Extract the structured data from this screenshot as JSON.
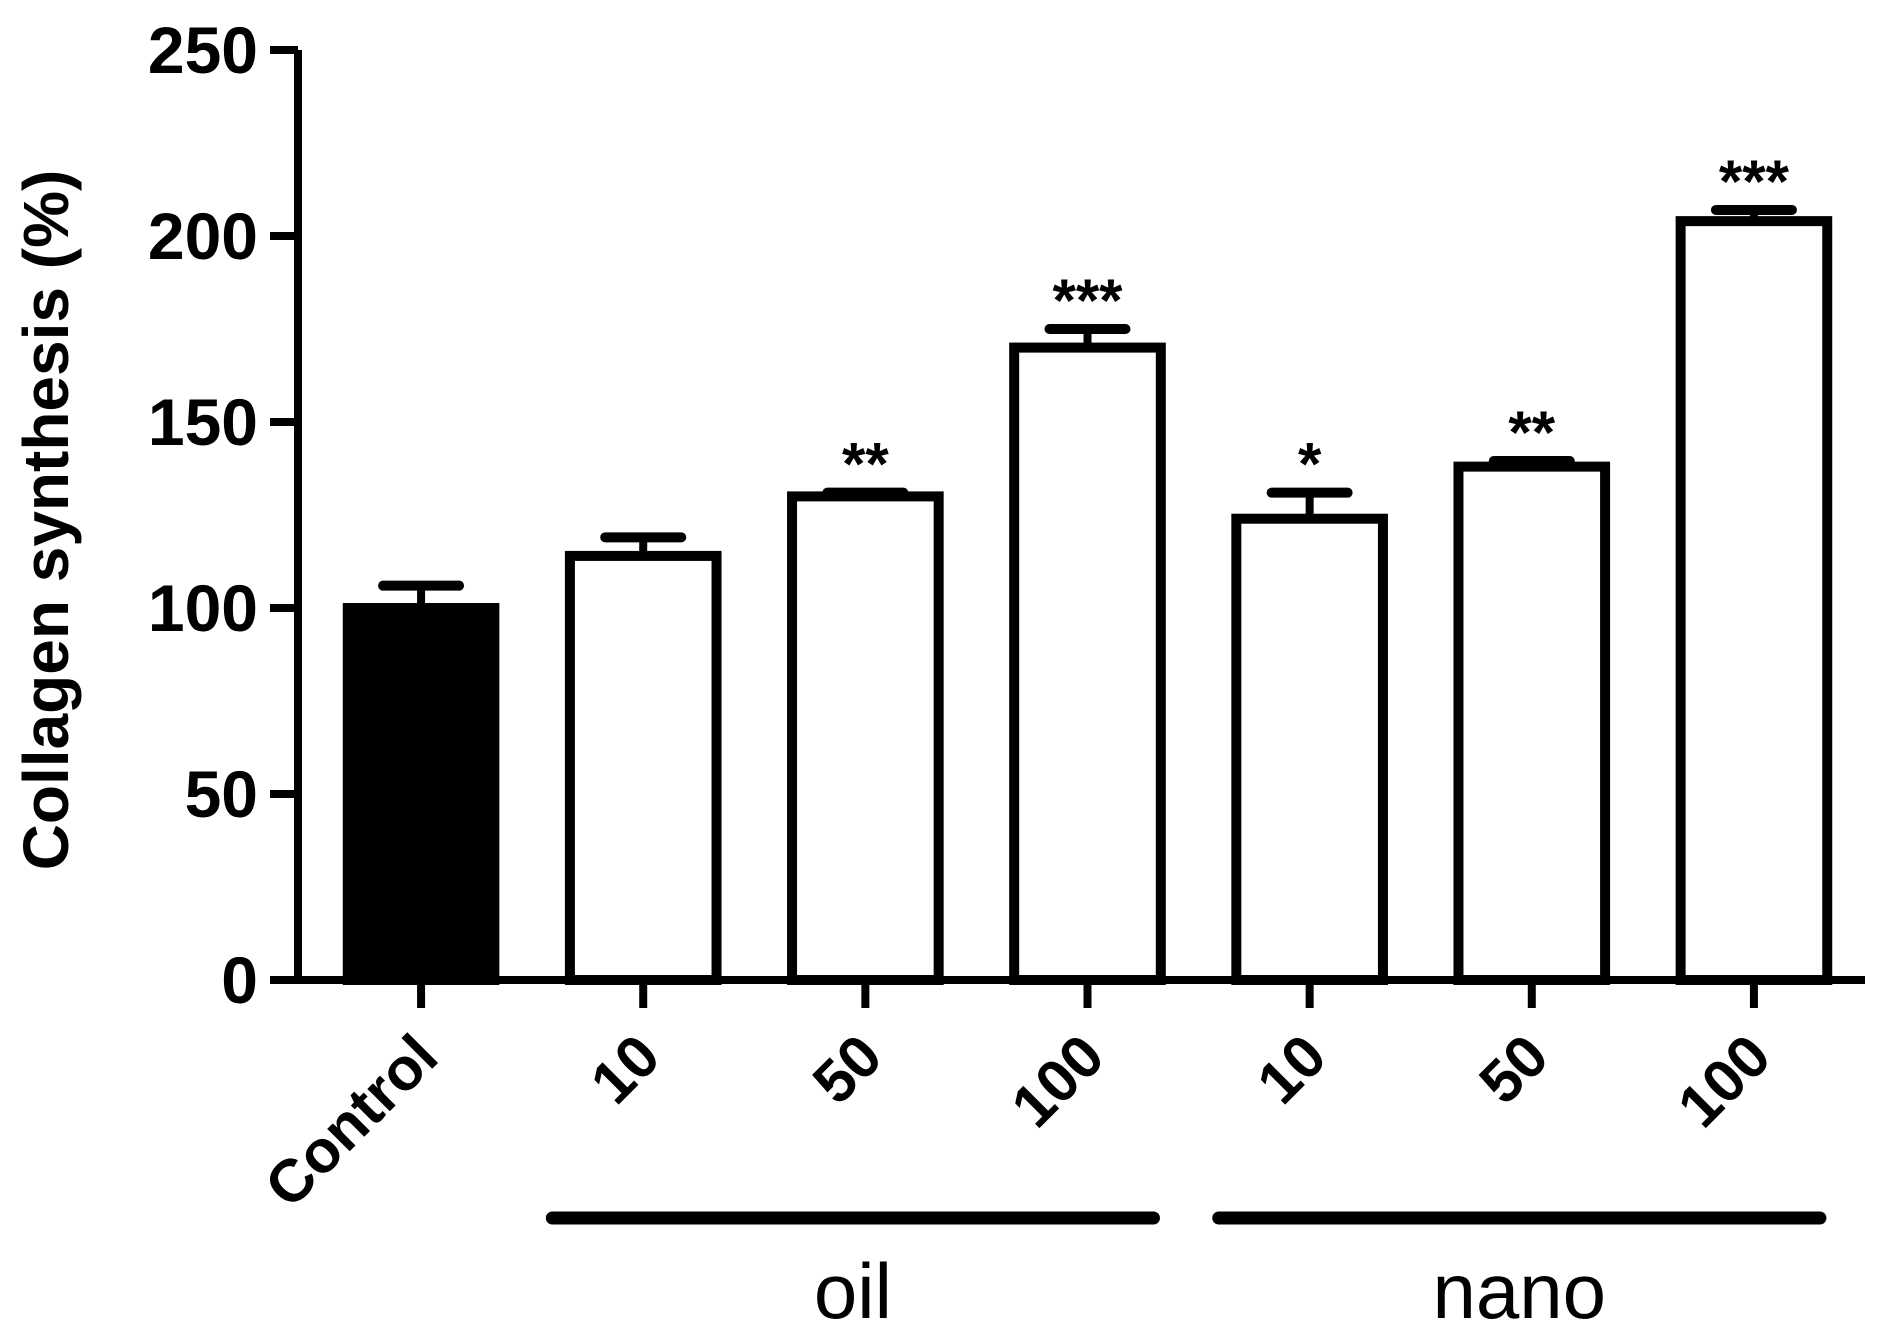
{
  "chart_data": {
    "type": "bar",
    "ylabel": "Collagen synthesis (%)",
    "ylim": [
      0,
      250
    ],
    "yticks": [
      0,
      50,
      100,
      150,
      200,
      250
    ],
    "categories": [
      "Control",
      "10",
      "50",
      "100",
      "10",
      "50",
      "100"
    ],
    "values": [
      100,
      114,
      130,
      170,
      124,
      138,
      204
    ],
    "errors": [
      6,
      5,
      1,
      5,
      7,
      1.5,
      3
    ],
    "significance": [
      "",
      "",
      "**",
      "***",
      "*",
      "**",
      "***"
    ],
    "bar_fill": [
      "#000000",
      "#ffffff",
      "#ffffff",
      "#ffffff",
      "#ffffff",
      "#ffffff",
      "#ffffff"
    ],
    "groups": [
      {
        "label": "oil",
        "start": 1,
        "end": 3
      },
      {
        "label": "nano",
        "start": 4,
        "end": 6
      }
    ],
    "grid": false,
    "colors": {
      "stroke": "#000000",
      "control": "#000000",
      "treatment": "#ffffff"
    }
  }
}
